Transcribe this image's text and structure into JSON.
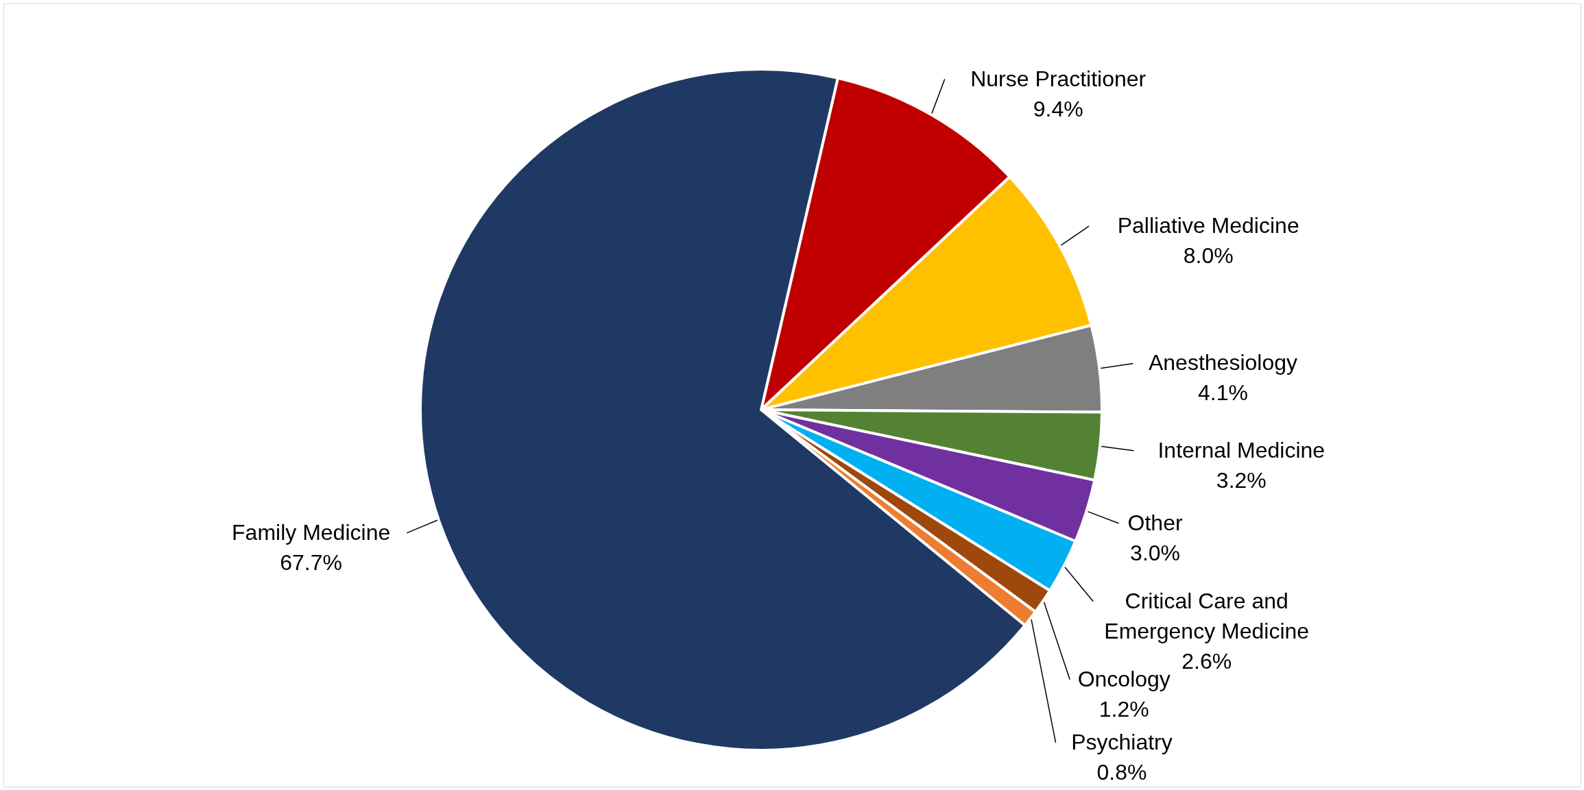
{
  "chart_data": {
    "type": "pie",
    "categories": [
      "Nurse Practitioner",
      "Palliative Medicine",
      "Anesthesiology",
      "Internal Medicine",
      "Other",
      "Critical Care and Emergency Medicine",
      "Oncology",
      "Psychiatry",
      "Family Medicine"
    ],
    "values": [
      9.4,
      8.0,
      4.1,
      3.2,
      3.0,
      2.6,
      1.2,
      0.8,
      67.7
    ],
    "value_labels": [
      "9.4%",
      "8.0%",
      "4.1%",
      "3.2%",
      "3.0%",
      "2.6%",
      "1.2%",
      "0.8%",
      "67.7%"
    ],
    "colors": [
      "#c00000",
      "#ffc000",
      "#7f7f7f",
      "#548235",
      "#7030a0",
      "#00b0f0",
      "#9e480e",
      "#ed7d31",
      "#203864"
    ]
  }
}
